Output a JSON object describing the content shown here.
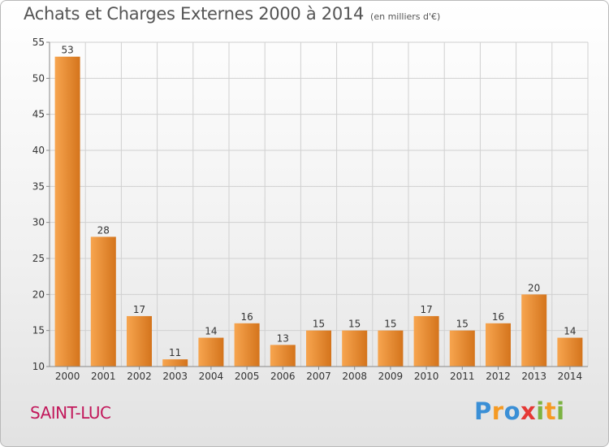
{
  "header": {
    "title": "Achats et Charges Externes 2000 à 2014",
    "unit": "(en milliers d'€)"
  },
  "footer": {
    "place_name": "SAINT-LUC",
    "logo_text": "Proxiti"
  },
  "colors": {
    "bar_light": "#f7a54f",
    "bar_dark": "#d4741c",
    "grid": "#d0d0d0",
    "axis_text": "#333333",
    "place": "#c2185b"
  },
  "chart_data": {
    "type": "bar",
    "title": "Achats et Charges Externes 2000 à 2014",
    "subtitle": "(en milliers d'€)",
    "xlabel": "",
    "ylabel": "",
    "categories": [
      "2000",
      "2001",
      "2002",
      "2003",
      "2004",
      "2005",
      "2006",
      "2007",
      "2008",
      "2009",
      "2010",
      "2011",
      "2012",
      "2013",
      "2014"
    ],
    "values": [
      53,
      28,
      17,
      11,
      14,
      16,
      13,
      15,
      15,
      15,
      17,
      15,
      16,
      20,
      14
    ],
    "ylim": [
      10,
      55
    ],
    "yticks": [
      10,
      15,
      20,
      25,
      30,
      35,
      40,
      45,
      50,
      55
    ],
    "grid": true,
    "legend": "none"
  }
}
